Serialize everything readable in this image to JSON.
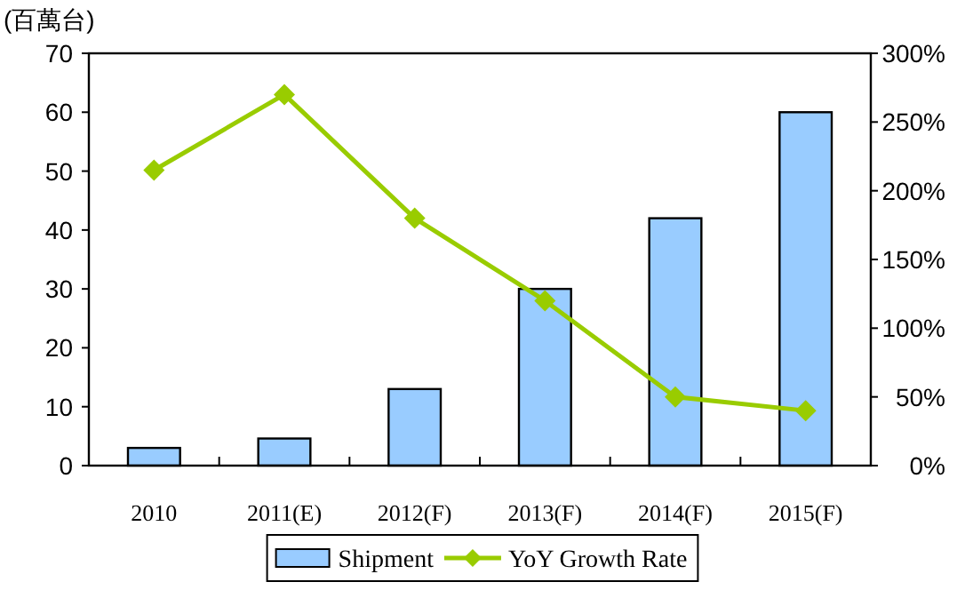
{
  "chart_data": {
    "type": "bar",
    "ylabel": "(百萬台)",
    "categories": [
      "2010",
      "2011(E)",
      "2012(F)",
      "2013(F)",
      "2014(F)",
      "2015(F)"
    ],
    "series": [
      {
        "name": "Shipment",
        "color": "#99ccff",
        "values": [
          3,
          4.6,
          13,
          30,
          42,
          60
        ]
      },
      {
        "name": "YoY Growth Rate",
        "type": "line",
        "axis": "y2",
        "color": "#99cc00",
        "marker": "diamond",
        "values": [
          215,
          270,
          180,
          120,
          50,
          40
        ]
      }
    ],
    "ylim": [
      0,
      70
    ],
    "yticks": [
      0,
      10,
      20,
      30,
      40,
      50,
      60,
      70
    ],
    "y2lim": [
      0,
      300
    ],
    "y2ticks": [
      {
        "value": 0,
        "label": "0%"
      },
      {
        "value": 50,
        "label": "50%"
      },
      {
        "value": 100,
        "label": "100%"
      },
      {
        "value": 150,
        "label": "150%"
      },
      {
        "value": 200,
        "label": "200%"
      },
      {
        "value": 250,
        "label": "250%"
      },
      {
        "value": 300,
        "label": "300%"
      }
    ],
    "legend": "bottom",
    "grid": false
  }
}
